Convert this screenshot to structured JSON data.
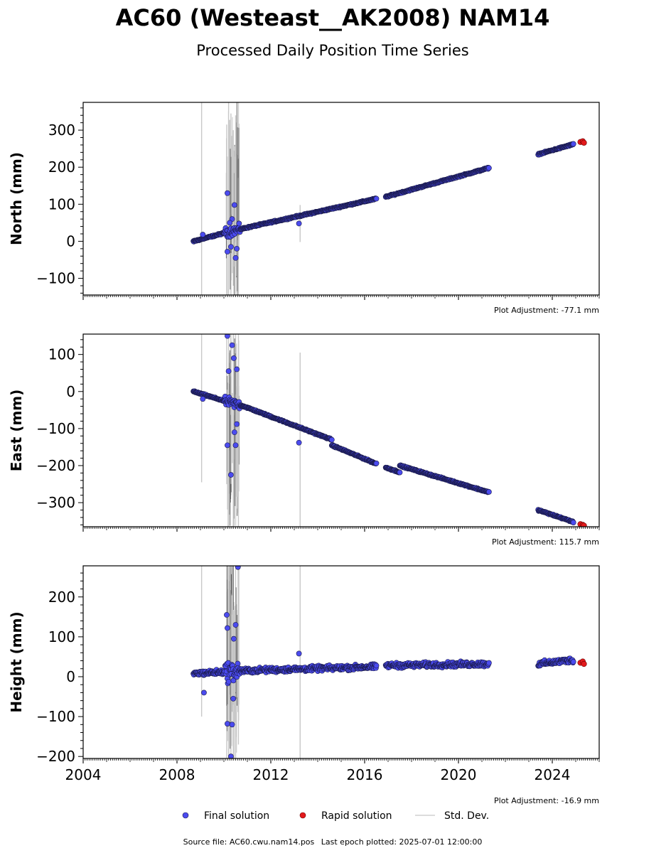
{
  "title": "AC60 (Westeast__AK2008) NAM14",
  "subtitle": "Processed Daily Position Time Series",
  "footer": {
    "source_label": "Source file:",
    "source_file": "AC60.cwu.nam14.pos",
    "last_epoch_label": "Last epoch plotted:",
    "last_epoch": "2025-07-01 12:00:00"
  },
  "legend": {
    "placement": "bottom-center",
    "items": [
      {
        "label": "Final solution",
        "color": "#4b4bef",
        "kind": "marker"
      },
      {
        "label": "Rapid solution",
        "color": "#e31a1c",
        "kind": "marker"
      },
      {
        "label": "Std. Dev.",
        "color": "#d0d0d0",
        "kind": "line"
      }
    ]
  },
  "colors": {
    "final_fill": "#4b4bef",
    "final_edge": "#1a1a4a",
    "rapid_fill": "#e31a1c",
    "stddev": "#c8c8c8",
    "stddev_dark": "#6a6a6a"
  },
  "chart_data": [
    {
      "type": "scatter",
      "ylabel": "North (mm)",
      "xlim": [
        2004,
        2026
      ],
      "ylim": [
        -145,
        375
      ],
      "yticks": [
        -100,
        0,
        100,
        200,
        300
      ],
      "adjustment": "Plot Adjustment: -77.1 mm",
      "show_xtick_labels": false,
      "final_segments": [
        {
          "x": [
            2008.7,
            2010.0
          ],
          "y": [
            0,
            22
          ]
        },
        {
          "x": [
            2010.0,
            2010.85
          ],
          "y": [
            22,
            35
          ]
        },
        {
          "x": [
            2010.85,
            2016.5
          ],
          "y": [
            35,
            115
          ]
        },
        {
          "x": [
            2016.9,
            2021.3
          ],
          "y": [
            120,
            198
          ]
        },
        {
          "x": [
            2023.4,
            2024.9
          ],
          "y": [
            235,
            262
          ]
        }
      ],
      "final_outliers": [
        {
          "x": 2009.1,
          "y": 18
        },
        {
          "x": 2010.15,
          "y": 130
        },
        {
          "x": 2010.15,
          "y": -28
        },
        {
          "x": 2010.3,
          "y": -15
        },
        {
          "x": 2010.45,
          "y": 98
        },
        {
          "x": 2010.5,
          "y": -45
        },
        {
          "x": 2010.35,
          "y": 60
        },
        {
          "x": 2010.25,
          "y": 50
        },
        {
          "x": 2010.55,
          "y": -20
        },
        {
          "x": 2013.2,
          "y": 48
        }
      ],
      "rapid_points": [
        {
          "x": 2025.2,
          "y": 268
        },
        {
          "x": 2025.3,
          "y": 270
        },
        {
          "x": 2025.35,
          "y": 266
        }
      ],
      "stddev_bars": [
        {
          "x": 2009.05,
          "low": -145,
          "high": 375
        },
        {
          "x": 2010.12,
          "low": -145,
          "high": 315
        },
        {
          "x": 2010.2,
          "low": -145,
          "high": 375
        },
        {
          "x": 2010.3,
          "low": -145,
          "high": 345
        },
        {
          "x": 2010.4,
          "low": -120,
          "high": 300
        },
        {
          "x": 2010.5,
          "low": -145,
          "high": 340
        },
        {
          "x": 2010.62,
          "low": -145,
          "high": 375
        },
        {
          "x": 2013.25,
          "low": -2,
          "high": 98
        }
      ]
    },
    {
      "type": "scatter",
      "ylabel": "East (mm)",
      "xlim": [
        2004,
        2026
      ],
      "ylim": [
        -365,
        155
      ],
      "yticks": [
        -300,
        -200,
        -100,
        0,
        100
      ],
      "adjustment": "Plot Adjustment: 115.7 mm",
      "show_xtick_labels": false,
      "final_segments": [
        {
          "x": [
            2008.7,
            2010.0
          ],
          "y": [
            0,
            -25
          ]
        },
        {
          "x": [
            2010.0,
            2010.85
          ],
          "y": [
            -25,
            -40
          ]
        },
        {
          "x": [
            2010.85,
            2014.6
          ],
          "y": [
            -40,
            -130
          ]
        },
        {
          "x": [
            2014.6,
            2016.5
          ],
          "y": [
            -145,
            -195
          ]
        },
        {
          "x": [
            2016.9,
            2017.5
          ],
          "y": [
            -205,
            -218
          ]
        },
        {
          "x": [
            2017.5,
            2021.3
          ],
          "y": [
            -200,
            -272
          ]
        },
        {
          "x": [
            2023.4,
            2024.9
          ],
          "y": [
            -320,
            -352
          ]
        }
      ],
      "final_outliers": [
        {
          "x": 2009.1,
          "y": -20
        },
        {
          "x": 2010.15,
          "y": 150
        },
        {
          "x": 2010.15,
          "y": -145
        },
        {
          "x": 2010.2,
          "y": 55
        },
        {
          "x": 2010.3,
          "y": -225
        },
        {
          "x": 2010.35,
          "y": 125
        },
        {
          "x": 2010.42,
          "y": 90
        },
        {
          "x": 2010.45,
          "y": -110
        },
        {
          "x": 2010.55,
          "y": 60
        },
        {
          "x": 2010.55,
          "y": -88
        },
        {
          "x": 2010.5,
          "y": -145
        },
        {
          "x": 2013.2,
          "y": -138
        }
      ],
      "rapid_points": [
        {
          "x": 2025.2,
          "y": -358
        },
        {
          "x": 2025.3,
          "y": -360
        },
        {
          "x": 2025.35,
          "y": -362
        }
      ],
      "stddev_bars": [
        {
          "x": 2009.05,
          "low": -245,
          "high": 155
        },
        {
          "x": 2010.12,
          "low": -250,
          "high": 155
        },
        {
          "x": 2010.2,
          "low": -365,
          "high": 155
        },
        {
          "x": 2010.3,
          "low": -280,
          "high": 155
        },
        {
          "x": 2010.4,
          "low": -365,
          "high": 155
        },
        {
          "x": 2010.5,
          "low": -260,
          "high": 155
        },
        {
          "x": 2010.62,
          "low": -365,
          "high": 155
        },
        {
          "x": 2013.25,
          "low": -365,
          "high": 105
        }
      ]
    },
    {
      "type": "scatter",
      "ylabel": "Height (mm)",
      "xlim": [
        2004,
        2026
      ],
      "ylim": [
        -205,
        278
      ],
      "yticks": [
        -200,
        -100,
        0,
        100,
        200
      ],
      "xticks": [
        2004,
        2008,
        2012,
        2016,
        2020,
        2024
      ],
      "adjustment": "Plot Adjustment: -16.9 mm",
      "show_xtick_labels": true,
      "final_segments": [
        {
          "x": [
            2008.7,
            2010.0
          ],
          "y": [
            8,
            12
          ]
        },
        {
          "x": [
            2010.0,
            2010.85
          ],
          "y": [
            12,
            15
          ]
        },
        {
          "x": [
            2010.85,
            2016.5
          ],
          "y": [
            15,
            25
          ]
        },
        {
          "x": [
            2016.9,
            2021.3
          ],
          "y": [
            28,
            32
          ]
        },
        {
          "x": [
            2023.4,
            2024.9
          ],
          "y": [
            32,
            42
          ]
        }
      ],
      "final_outliers": [
        {
          "x": 2009.15,
          "y": -40
        },
        {
          "x": 2010.12,
          "y": 155
        },
        {
          "x": 2010.15,
          "y": 122
        },
        {
          "x": 2010.15,
          "y": -118
        },
        {
          "x": 2010.3,
          "y": -200
        },
        {
          "x": 2010.35,
          "y": -120
        },
        {
          "x": 2010.5,
          "y": 130
        },
        {
          "x": 2010.6,
          "y": 275
        },
        {
          "x": 2010.42,
          "y": 95
        },
        {
          "x": 2010.4,
          "y": -55
        },
        {
          "x": 2013.2,
          "y": 58
        }
      ],
      "rapid_points": [
        {
          "x": 2025.2,
          "y": 35
        },
        {
          "x": 2025.3,
          "y": 38
        },
        {
          "x": 2025.35,
          "y": 32
        }
      ],
      "stddev_bars": [
        {
          "x": 2009.05,
          "low": -100,
          "high": 278
        },
        {
          "x": 2010.12,
          "low": -205,
          "high": 278
        },
        {
          "x": 2010.2,
          "low": -205,
          "high": 278
        },
        {
          "x": 2010.3,
          "low": -205,
          "high": 278
        },
        {
          "x": 2010.4,
          "low": -205,
          "high": 278
        },
        {
          "x": 2010.5,
          "low": -205,
          "high": 278
        },
        {
          "x": 2010.62,
          "low": -170,
          "high": 278
        },
        {
          "x": 2013.25,
          "low": -205,
          "high": 278
        }
      ]
    }
  ]
}
